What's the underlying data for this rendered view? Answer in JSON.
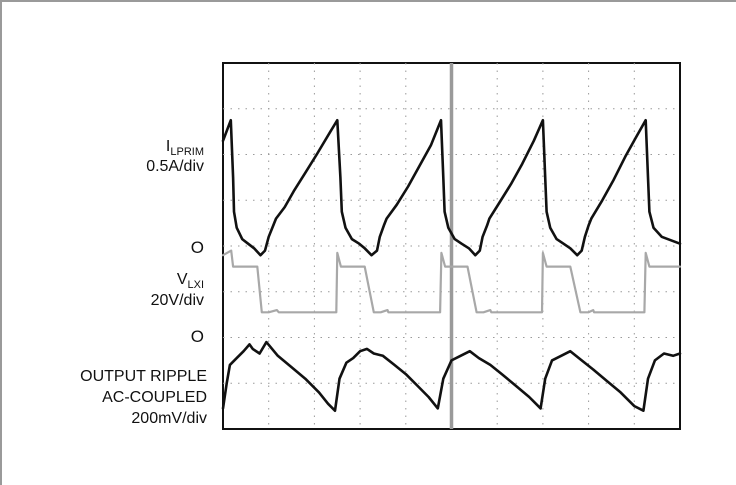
{
  "chart_data": {
    "type": "line",
    "title": "",
    "xlabel": "",
    "ylabel": "",
    "grid": true,
    "divisions": {
      "x": 10,
      "y": 8
    },
    "xlim": [
      0,
      10
    ],
    "ylim": [
      0,
      8
    ],
    "labels": {
      "iprim": {
        "main": "I",
        "sub": "LPRIM",
        "scale": "0.5A/div"
      },
      "vlxi": {
        "main": "V",
        "sub": "LXI",
        "scale": "20V/div"
      },
      "ripple": {
        "line1": "OUTPUT RIPPLE",
        "line2": "AC-COUPLED",
        "scale": "200mV/div"
      },
      "zero": "O"
    },
    "colors": {
      "trace_primary": "#111111",
      "trace_lx": "#a8a8a8",
      "trace_ripple": "#111111",
      "grid": "#9a9a9a",
      "frame": "#111111",
      "marker": "#9a9a9a"
    },
    "series": [
      {
        "name": "I LPRIM",
        "color": "#111111",
        "points": [
          [
            0.0,
            6.3
          ],
          [
            0.17,
            6.75
          ],
          [
            0.22,
            5.5
          ],
          [
            0.24,
            4.75
          ],
          [
            0.3,
            4.4
          ],
          [
            0.42,
            4.15
          ],
          [
            0.55,
            4.05
          ],
          [
            0.68,
            3.95
          ],
          [
            0.82,
            3.8
          ],
          [
            0.92,
            3.9
          ],
          [
            1.0,
            4.2
          ],
          [
            1.1,
            4.45
          ],
          [
            1.16,
            4.6
          ],
          [
            1.35,
            4.85
          ],
          [
            1.55,
            5.2
          ],
          [
            1.8,
            5.6
          ],
          [
            2.05,
            6.0
          ],
          [
            2.35,
            6.5
          ],
          [
            2.5,
            6.75
          ],
          [
            2.57,
            5.5
          ],
          [
            2.6,
            4.75
          ],
          [
            2.68,
            4.4
          ],
          [
            2.82,
            4.15
          ],
          [
            2.98,
            4.05
          ],
          [
            3.1,
            3.95
          ],
          [
            3.25,
            3.8
          ],
          [
            3.37,
            3.9
          ],
          [
            3.43,
            4.2
          ],
          [
            3.52,
            4.45
          ],
          [
            3.58,
            4.6
          ],
          [
            3.8,
            4.9
          ],
          [
            4.05,
            5.3
          ],
          [
            4.3,
            5.75
          ],
          [
            4.55,
            6.2
          ],
          [
            4.77,
            6.75
          ],
          [
            4.82,
            5.5
          ],
          [
            4.85,
            4.75
          ],
          [
            4.93,
            4.4
          ],
          [
            5.07,
            4.15
          ],
          [
            5.22,
            4.05
          ],
          [
            5.38,
            3.95
          ],
          [
            5.52,
            3.8
          ],
          [
            5.62,
            3.9
          ],
          [
            5.68,
            4.2
          ],
          [
            5.78,
            4.45
          ],
          [
            5.83,
            4.6
          ],
          [
            6.05,
            4.95
          ],
          [
            6.3,
            5.35
          ],
          [
            6.55,
            5.8
          ],
          [
            6.8,
            6.3
          ],
          [
            7.0,
            6.75
          ],
          [
            7.05,
            5.5
          ],
          [
            7.08,
            4.75
          ],
          [
            7.16,
            4.4
          ],
          [
            7.3,
            4.15
          ],
          [
            7.45,
            4.05
          ],
          [
            7.6,
            3.95
          ],
          [
            7.75,
            3.8
          ],
          [
            7.85,
            3.9
          ],
          [
            7.92,
            4.2
          ],
          [
            8.0,
            4.45
          ],
          [
            8.06,
            4.6
          ],
          [
            8.3,
            5.0
          ],
          [
            8.55,
            5.45
          ],
          [
            8.8,
            5.95
          ],
          [
            9.05,
            6.4
          ],
          [
            9.25,
            6.75
          ],
          [
            9.3,
            5.5
          ],
          [
            9.33,
            4.75
          ],
          [
            9.42,
            4.4
          ],
          [
            9.6,
            4.2
          ],
          [
            10.0,
            4.05
          ]
        ]
      },
      {
        "name": "V LXI",
        "color": "#a8a8a8",
        "points": [
          [
            0.0,
            3.8
          ],
          [
            0.18,
            3.9
          ],
          [
            0.22,
            3.55
          ],
          [
            0.5,
            3.55
          ],
          [
            0.75,
            3.55
          ],
          [
            0.85,
            2.55
          ],
          [
            1.0,
            2.55
          ],
          [
            1.18,
            2.6
          ],
          [
            1.22,
            2.55
          ],
          [
            2.48,
            2.55
          ],
          [
            2.5,
            3.85
          ],
          [
            2.58,
            3.55
          ],
          [
            3.1,
            3.55
          ],
          [
            3.3,
            2.55
          ],
          [
            3.45,
            2.55
          ],
          [
            3.6,
            2.6
          ],
          [
            3.62,
            2.55
          ],
          [
            4.75,
            2.55
          ],
          [
            4.78,
            3.85
          ],
          [
            4.86,
            3.55
          ],
          [
            5.35,
            3.55
          ],
          [
            5.55,
            2.55
          ],
          [
            5.7,
            2.55
          ],
          [
            5.85,
            2.6
          ],
          [
            5.87,
            2.55
          ],
          [
            6.98,
            2.55
          ],
          [
            7.0,
            3.85
          ],
          [
            7.08,
            3.55
          ],
          [
            7.6,
            3.55
          ],
          [
            7.82,
            2.55
          ],
          [
            8.0,
            2.55
          ],
          [
            8.1,
            2.6
          ],
          [
            8.12,
            2.55
          ],
          [
            9.22,
            2.55
          ],
          [
            9.25,
            3.85
          ],
          [
            9.33,
            3.55
          ],
          [
            10.0,
            3.55
          ]
        ]
      },
      {
        "name": "OUTPUT RIPPLE",
        "color": "#111111",
        "points": [
          [
            0.0,
            0.45
          ],
          [
            0.08,
            1.0
          ],
          [
            0.15,
            1.4
          ],
          [
            0.3,
            1.55
          ],
          [
            0.45,
            1.7
          ],
          [
            0.58,
            1.85
          ],
          [
            0.65,
            1.75
          ],
          [
            0.8,
            1.65
          ],
          [
            0.95,
            1.9
          ],
          [
            1.2,
            1.6
          ],
          [
            1.5,
            1.35
          ],
          [
            1.8,
            1.1
          ],
          [
            2.1,
            0.8
          ],
          [
            2.3,
            0.55
          ],
          [
            2.45,
            0.4
          ],
          [
            2.55,
            1.1
          ],
          [
            2.7,
            1.45
          ],
          [
            2.85,
            1.55
          ],
          [
            3.0,
            1.7
          ],
          [
            3.15,
            1.75
          ],
          [
            3.3,
            1.65
          ],
          [
            3.5,
            1.6
          ],
          [
            3.75,
            1.4
          ],
          [
            4.0,
            1.2
          ],
          [
            4.25,
            0.95
          ],
          [
            4.5,
            0.7
          ],
          [
            4.7,
            0.45
          ],
          [
            4.82,
            1.1
          ],
          [
            5.0,
            1.5
          ],
          [
            5.2,
            1.6
          ],
          [
            5.4,
            1.7
          ],
          [
            5.6,
            1.55
          ],
          [
            5.85,
            1.4
          ],
          [
            6.1,
            1.2
          ],
          [
            6.4,
            0.95
          ],
          [
            6.7,
            0.7
          ],
          [
            6.95,
            0.45
          ],
          [
            7.05,
            1.1
          ],
          [
            7.2,
            1.5
          ],
          [
            7.4,
            1.6
          ],
          [
            7.6,
            1.7
          ],
          [
            7.85,
            1.5
          ],
          [
            8.1,
            1.3
          ],
          [
            8.4,
            1.05
          ],
          [
            8.7,
            0.8
          ],
          [
            9.0,
            0.5
          ],
          [
            9.2,
            0.4
          ],
          [
            9.3,
            1.1
          ],
          [
            9.45,
            1.5
          ],
          [
            9.65,
            1.65
          ],
          [
            9.85,
            1.6
          ],
          [
            10.0,
            1.65
          ]
        ]
      }
    ]
  }
}
